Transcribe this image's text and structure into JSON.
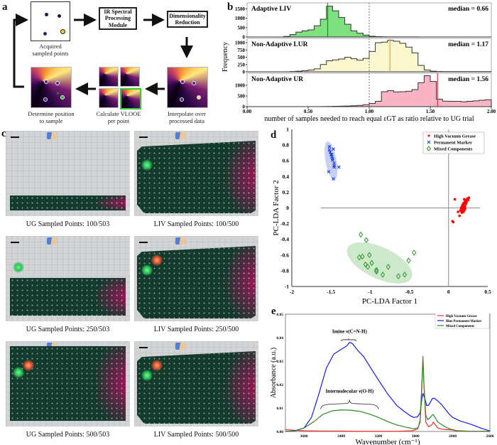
{
  "panels": {
    "a": {
      "letter": "a",
      "steps": {
        "acquired": "Acquired\nsampled points",
        "ir_module": "IR Spectral Processing Module",
        "dim_reduction": "Dimensionality Reduction",
        "interpolate": "Interpolate over\nprocessed data",
        "vlooe": "Calculate VLOOE\nper point",
        "determine": "Determine position\nto sample"
      },
      "colors": {
        "highlight_border": "#33cc33",
        "next_point": "#2db82d"
      }
    },
    "b": {
      "letter": "b"
    },
    "c": {
      "letter": "c",
      "tiles": [
        {
          "method": "UG",
          "caption": "UG Sampled Points: 100/503",
          "sampled": 100,
          "total": 503
        },
        {
          "method": "LIV",
          "caption": "LIV Sampled Points: 100/500",
          "sampled": 100,
          "total": 500
        },
        {
          "method": "UG",
          "caption": "UG Sampled Points: 250/503",
          "sampled": 250,
          "total": 503
        },
        {
          "method": "LIV",
          "caption": "LIV Sampled Points: 250/500",
          "sampled": 250,
          "total": 500
        },
        {
          "method": "UG",
          "caption": "UG Sampled Points: 500/503",
          "sampled": 500,
          "total": 503
        },
        {
          "method": "LIV",
          "caption": "LIV Sampled Points: 500/500",
          "sampled": 500,
          "total": 500
        }
      ],
      "colors": {
        "background_tissue": "#123b2c",
        "magenta_component": "#a0145a",
        "green_component": "#2ee06a",
        "substrate": "#d3d4d6"
      }
    },
    "d": {
      "letter": "d"
    },
    "e": {
      "letter": "e"
    }
  },
  "chart_data": [
    {
      "id": "b",
      "type": "bar",
      "xlabel": "number of samples needed to reach equal εGT as ratio relative to UG trial",
      "ylabel": "Frequency",
      "xlim": [
        0.0,
        2.0
      ],
      "xticks": [
        "0.00",
        "0.50",
        "1.00",
        "1.50",
        "2.00"
      ],
      "reference_line": 1.0,
      "bin_edges": [
        0.0,
        0.05,
        0.1,
        0.15,
        0.2,
        0.25,
        0.3,
        0.35,
        0.4,
        0.45,
        0.5,
        0.55,
        0.6,
        0.65,
        0.7,
        0.75,
        0.8,
        0.85,
        0.9,
        0.95,
        1.0,
        1.05,
        1.1,
        1.15,
        1.2,
        1.25,
        1.3,
        1.35,
        1.4,
        1.45,
        1.5,
        1.55,
        1.6,
        1.65,
        1.7,
        1.75,
        1.8,
        1.85,
        1.9,
        1.95,
        2.0
      ],
      "series": [
        {
          "name": "Adaptive LIV",
          "median": 0.66,
          "median_label": "median = 0.66",
          "color": "#7fe07f",
          "median_color": "#1a8a1a",
          "ylim": [
            0,
            1750
          ],
          "yticks": [
            0,
            500,
            1000,
            1500
          ],
          "values": [
            0,
            0,
            0,
            0,
            0,
            0,
            30,
            130,
            260,
            330,
            380,
            600,
            950,
            1650,
            1400,
            1040,
            680,
            330,
            200,
            100,
            40,
            20,
            10,
            5,
            5,
            3,
            3,
            3,
            2,
            2,
            2,
            2,
            2,
            1,
            1,
            1,
            1,
            1,
            1,
            1
          ]
        },
        {
          "name": "Non-Adaptive LUR",
          "median": 1.17,
          "median_label": "median = 1.17",
          "color": "#fbf8cf",
          "median_color": "#f0a020",
          "ylim": [
            0,
            1100
          ],
          "yticks": [
            0,
            250,
            500,
            750,
            1000
          ],
          "values": [
            0,
            0,
            0,
            0,
            0,
            0,
            0,
            10,
            20,
            40,
            60,
            100,
            250,
            380,
            410,
            440,
            500,
            450,
            400,
            460,
            700,
            1000,
            1020,
            1080,
            1050,
            980,
            850,
            650,
            220,
            60,
            20,
            10,
            5,
            5,
            5,
            5,
            5,
            5,
            5,
            5
          ]
        },
        {
          "name": "Non-Adaptive UR",
          "median": 1.56,
          "median_label": "median = 1.56",
          "color": "#f8b4c4",
          "median_color": "#e0303c",
          "ylim": [
            0,
            1500
          ],
          "yticks": [
            0,
            500,
            1000
          ],
          "values": [
            0,
            0,
            0,
            0,
            0,
            0,
            0,
            0,
            0,
            0,
            0,
            0,
            5,
            10,
            15,
            20,
            30,
            40,
            60,
            90,
            150,
            250,
            700,
            750,
            690,
            700,
            720,
            800,
            1120,
            1450,
            1180,
            350,
            260,
            250,
            250,
            230,
            250,
            270,
            300,
            320
          ]
        }
      ]
    },
    {
      "id": "d",
      "type": "scatter",
      "xlabel": "PC-LDA Factor 1",
      "ylabel": "PC-LDA Factor 2",
      "xlim": [
        -2,
        0.5
      ],
      "ylim": [
        -1,
        1
      ],
      "xticks": [
        -2,
        -1.5,
        -1,
        -0.5,
        0,
        0.5
      ],
      "yticks": [
        -1,
        -0.8,
        -0.6,
        -0.4,
        -0.2,
        0,
        0.2,
        0.4,
        0.6,
        0.8,
        1
      ],
      "legend": "top-right",
      "series": [
        {
          "name": "High Vacuum Grease",
          "marker": "dot",
          "color": "#ff0000",
          "points": [
            [
              0.08,
              0.11
            ],
            [
              0.05,
              -0.17
            ],
            [
              0.06,
              -0.18
            ],
            [
              0.12,
              -0.05
            ],
            [
              0.14,
              -0.1
            ],
            [
              0.15,
              -0.03
            ],
            [
              0.16,
              0.0
            ],
            [
              0.17,
              0.02
            ],
            [
              0.18,
              0.04
            ],
            [
              0.19,
              0.03
            ],
            [
              0.2,
              0.06
            ],
            [
              0.21,
              0.08
            ],
            [
              0.22,
              0.05
            ],
            [
              0.23,
              0.1
            ],
            [
              0.24,
              0.12
            ],
            [
              0.18,
              -0.02
            ],
            [
              0.2,
              0.01
            ],
            [
              0.19,
              -0.05
            ],
            [
              0.21,
              0.02
            ],
            [
              0.22,
              0.09
            ],
            [
              0.17,
              -0.06
            ],
            [
              0.16,
              -0.04
            ],
            [
              0.25,
              0.1
            ],
            [
              0.23,
              0.07
            ],
            [
              0.2,
              0.11
            ],
            [
              0.26,
              0.13
            ],
            [
              0.18,
              0.0
            ],
            [
              0.19,
              0.06
            ],
            [
              0.21,
              -0.01
            ],
            [
              0.2,
              -0.03
            ]
          ],
          "ellipse_color": null
        },
        {
          "name": "Permanent Marker",
          "marker": "x",
          "color": "#1f3fd8",
          "points": [
            [
              -1.52,
              0.78
            ],
            [
              -1.52,
              0.74
            ],
            [
              -1.51,
              0.71
            ],
            [
              -1.5,
              0.68
            ],
            [
              -1.49,
              0.65
            ],
            [
              -1.48,
              0.63
            ],
            [
              -1.47,
              0.75
            ],
            [
              -1.46,
              0.57
            ],
            [
              -1.46,
              0.54
            ],
            [
              -1.46,
              0.52
            ],
            [
              -1.4,
              0.52
            ],
            [
              -1.53,
              0.46
            ],
            [
              -1.47,
              0.37
            ],
            [
              -1.49,
              0.68
            ],
            [
              -1.48,
              0.61
            ]
          ],
          "ellipse": {
            "cx": -1.5,
            "cy": 0.6,
            "rx": 0.07,
            "ry": 0.25,
            "angle": -10
          },
          "ellipse_color": "#c0c8f4"
        },
        {
          "name": "Mixed Components",
          "marker": "diamond",
          "color": "#2a9a2a",
          "points": [
            [
              -1.12,
              -0.34
            ],
            [
              -1.05,
              -0.41
            ],
            [
              -1.14,
              -0.63
            ],
            [
              -1.1,
              -0.62
            ],
            [
              -1.01,
              -0.6
            ],
            [
              -1.06,
              -0.72
            ],
            [
              -1.03,
              -0.75
            ],
            [
              -0.98,
              -0.7
            ],
            [
              -0.92,
              -0.79
            ],
            [
              -0.92,
              -0.81
            ],
            [
              -0.84,
              -0.85
            ],
            [
              -0.77,
              -0.75
            ],
            [
              -0.64,
              -0.87
            ],
            [
              -0.56,
              -0.85
            ],
            [
              -0.51,
              -0.67
            ],
            [
              -0.44,
              -0.57
            ]
          ],
          "ellipse": {
            "cx": -0.88,
            "cy": -0.7,
            "rx": 0.45,
            "ry": 0.2,
            "angle": 25
          },
          "ellipse_color": "#c6e4c2"
        }
      ]
    },
    {
      "id": "e",
      "type": "line",
      "xlabel": "Wavenumber (cm⁻¹)",
      "ylabel": "Absorbance (a.u.)",
      "xlim": [
        3700,
        2600
      ],
      "ylim": [
        0,
        0.05
      ],
      "xticks": [
        3600,
        3400,
        3200,
        3000,
        2800,
        2600
      ],
      "yticks": [
        "0.00",
        "0.01",
        "0.02",
        "0.03",
        "0.04",
        "0.05"
      ],
      "legend": "top-right",
      "annotations": [
        {
          "text": "Imine ν(C=N-H)",
          "x": 3355,
          "y": 0.041
        },
        {
          "text": "Intermolecular ν(O-H)",
          "x": 3355,
          "y": 0.0165
        }
      ],
      "series": [
        {
          "name": "High Vacuum Grease",
          "color": "#ff2a2a",
          "x": [
            3700,
            3650,
            3600,
            3500,
            3400,
            3300,
            3200,
            3100,
            3020,
            2990,
            2975,
            2965,
            2960,
            2955,
            2945,
            2930,
            2910,
            2905,
            2895,
            2880,
            2860,
            2840,
            2820,
            2800,
            2780,
            2700,
            2600
          ],
          "y": [
            0.0008,
            0.0005,
            0.0003,
            0.0002,
            0.0002,
            0.0001,
            0.0001,
            0.0001,
            0.0003,
            0.001,
            0.004,
            0.02,
            0.032,
            0.02,
            0.004,
            0.002,
            0.003,
            0.004,
            0.003,
            0.0015,
            0.001,
            0.0008,
            0.0008,
            0.0006,
            0.0002,
            0.0001,
            0.0001
          ]
        },
        {
          "name": "Blue Permanent Marker",
          "color": "#1a1ae0",
          "x": [
            3700,
            3650,
            3600,
            3560,
            3520,
            3480,
            3440,
            3400,
            3370,
            3355,
            3340,
            3310,
            3280,
            3240,
            3200,
            3150,
            3100,
            3060,
            3030,
            3010,
            2990,
            2975,
            2965,
            2960,
            2950,
            2940,
            2930,
            2920,
            2910,
            2900,
            2880,
            2860,
            2840,
            2820,
            2800,
            2760,
            2700,
            2650,
            2600
          ],
          "y": [
            0.0,
            0.0003,
            0.0015,
            0.006,
            0.016,
            0.027,
            0.033,
            0.035,
            0.0365,
            0.038,
            0.0375,
            0.0345,
            0.032,
            0.027,
            0.022,
            0.016,
            0.011,
            0.0085,
            0.0068,
            0.006,
            0.0062,
            0.008,
            0.0145,
            0.0162,
            0.014,
            0.011,
            0.0112,
            0.0125,
            0.014,
            0.0142,
            0.013,
            0.0115,
            0.0095,
            0.0075,
            0.006,
            0.0045,
            0.003,
            0.0015,
            0.0002
          ]
        },
        {
          "name": "Mixed Components",
          "color": "#2a8a2a",
          "x": [
            3700,
            3650,
            3600,
            3550,
            3500,
            3450,
            3400,
            3350,
            3300,
            3250,
            3200,
            3150,
            3100,
            3050,
            3020,
            3000,
            2985,
            2975,
            2965,
            2960,
            2955,
            2945,
            2935,
            2920,
            2910,
            2905,
            2895,
            2880,
            2860,
            2850,
            2840,
            2820,
            2800,
            2780,
            2700,
            2600
          ],
          "y": [
            0.0,
            0.0002,
            0.0015,
            0.004,
            0.0072,
            0.0088,
            0.0092,
            0.0091,
            0.0086,
            0.0075,
            0.006,
            0.0042,
            0.0028,
            0.0018,
            0.0013,
            0.0012,
            0.0018,
            0.005,
            0.022,
            0.031,
            0.02,
            0.007,
            0.005,
            0.006,
            0.007,
            0.0072,
            0.006,
            0.004,
            0.003,
            0.0025,
            0.002,
            0.0012,
            0.0008,
            0.0004,
            0.0001,
            0.0
          ]
        }
      ]
    }
  ]
}
